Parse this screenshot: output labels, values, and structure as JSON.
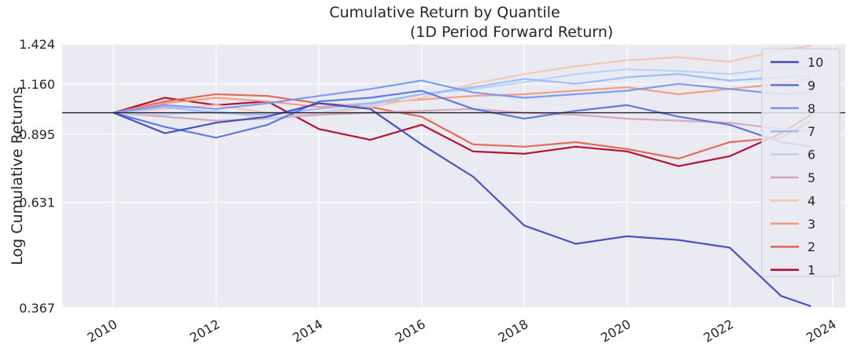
{
  "chart_data": {
    "type": "line",
    "title": "Cumulative Return by Quantile",
    "subtitle": "(1D Period Forward Return)",
    "ylabel": "Log Cumulative Returns",
    "xlabel": "",
    "y_scale": "log",
    "yticks": [
      "0.367",
      "0.631",
      "0.895",
      "1.160",
      "1.424"
    ],
    "xticks": [
      "2010",
      "2012",
      "2014",
      "2016",
      "2018",
      "2020",
      "2022",
      "2024"
    ],
    "ylim": [
      0.367,
      1.424
    ],
    "xlim": [
      "2009-01-01",
      "2024-04-01"
    ],
    "reference_line": 1.0,
    "grid": true,
    "background": "#eaeaf2",
    "legend_position": "right",
    "x": [
      "2010-01",
      "2011-01",
      "2012-01",
      "2013-01",
      "2014-01",
      "2015-01",
      "2016-01",
      "2017-01",
      "2018-01",
      "2019-01",
      "2020-01",
      "2021-01",
      "2022-01",
      "2023-01",
      "2023-08"
    ],
    "series": [
      {
        "name": "10",
        "color": "#3b4cc0",
        "values": [
          1.0,
          0.9,
          0.95,
          0.98,
          1.05,
          1.02,
          0.85,
          0.72,
          0.56,
          0.51,
          0.53,
          0.52,
          0.5,
          0.39,
          0.37
        ]
      },
      {
        "name": "9",
        "color": "#5673e0",
        "values": [
          1.0,
          0.93,
          0.88,
          0.94,
          1.06,
          1.08,
          1.12,
          1.02,
          0.97,
          1.01,
          1.04,
          0.98,
          0.94,
          0.86,
          0.84
        ]
      },
      {
        "name": "8",
        "color": "#7597f6",
        "values": [
          1.0,
          1.04,
          1.02,
          1.05,
          1.09,
          1.13,
          1.18,
          1.11,
          1.08,
          1.1,
          1.12,
          1.16,
          1.13,
          1.1,
          1.11
        ]
      },
      {
        "name": "7",
        "color": "#9abbff",
        "values": [
          1.0,
          1.03,
          1.0,
          0.99,
          1.02,
          1.05,
          1.1,
          1.14,
          1.19,
          1.16,
          1.2,
          1.22,
          1.18,
          1.2,
          1.21
        ]
      },
      {
        "name": "6",
        "color": "#bbd1f8",
        "values": [
          1.0,
          0.99,
          1.01,
          0.97,
          1.0,
          1.04,
          1.1,
          1.13,
          1.17,
          1.22,
          1.25,
          1.24,
          1.22,
          1.26,
          1.26
        ]
      },
      {
        "name": "5",
        "color": "#d3a3b8",
        "values": [
          1.0,
          0.98,
          0.96,
          0.97,
          0.99,
          1.0,
          1.01,
          1.02,
          1.0,
          0.99,
          0.97,
          0.96,
          0.95,
          0.92,
          0.91
        ]
      },
      {
        "name": "4",
        "color": "#f4c6ad",
        "values": [
          1.0,
          1.02,
          1.04,
          1.0,
          0.99,
          1.03,
          1.08,
          1.16,
          1.22,
          1.27,
          1.31,
          1.33,
          1.3,
          1.38,
          1.41
        ]
      },
      {
        "name": "3",
        "color": "#f49a7b",
        "values": [
          1.0,
          1.05,
          1.08,
          1.06,
          1.03,
          1.05,
          1.07,
          1.09,
          1.1,
          1.12,
          1.14,
          1.1,
          1.13,
          1.16,
          1.19
        ]
      },
      {
        "name": "2",
        "color": "#e0654f",
        "values": [
          1.0,
          1.06,
          1.1,
          1.09,
          1.05,
          1.03,
          0.98,
          0.85,
          0.84,
          0.86,
          0.83,
          0.79,
          0.86,
          0.88,
          0.96
        ]
      },
      {
        "name": "1",
        "color": "#b40426",
        "values": [
          1.0,
          1.08,
          1.04,
          1.06,
          0.92,
          0.87,
          0.94,
          0.82,
          0.81,
          0.84,
          0.82,
          0.76,
          0.8,
          0.9,
          0.99
        ]
      }
    ]
  }
}
